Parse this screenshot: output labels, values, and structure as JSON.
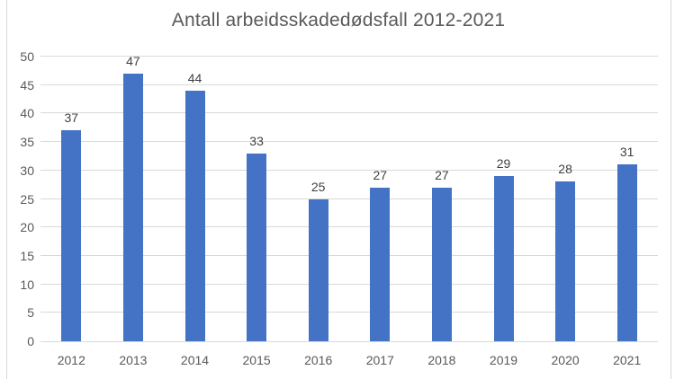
{
  "chart_data": {
    "type": "bar",
    "title": "Antall arbeidsskadedødsfall 2012-2021",
    "categories": [
      "2012",
      "2013",
      "2014",
      "2015",
      "2016",
      "2017",
      "2018",
      "2019",
      "2020",
      "2021"
    ],
    "values": [
      37,
      47,
      44,
      33,
      25,
      27,
      27,
      29,
      28,
      31
    ],
    "data_labels": [
      37,
      47,
      44,
      33,
      25,
      27,
      27,
      29,
      28,
      31
    ],
    "xlabel": "",
    "ylabel": "",
    "ylim": [
      0,
      50
    ],
    "y_ticks": [
      0,
      5,
      10,
      15,
      20,
      25,
      30,
      35,
      40,
      45,
      50
    ],
    "grid": "horizontal",
    "legend": "none"
  },
  "colors": {
    "bar": "#4472C4",
    "grid_line": "#D9D9D9",
    "axis_line": "#D9D9D9",
    "axis_text": "#595959",
    "title_text": "#595959",
    "data_label_text": "#404040",
    "chart_border": "#D9D9D9",
    "background": "#FFFFFF"
  }
}
